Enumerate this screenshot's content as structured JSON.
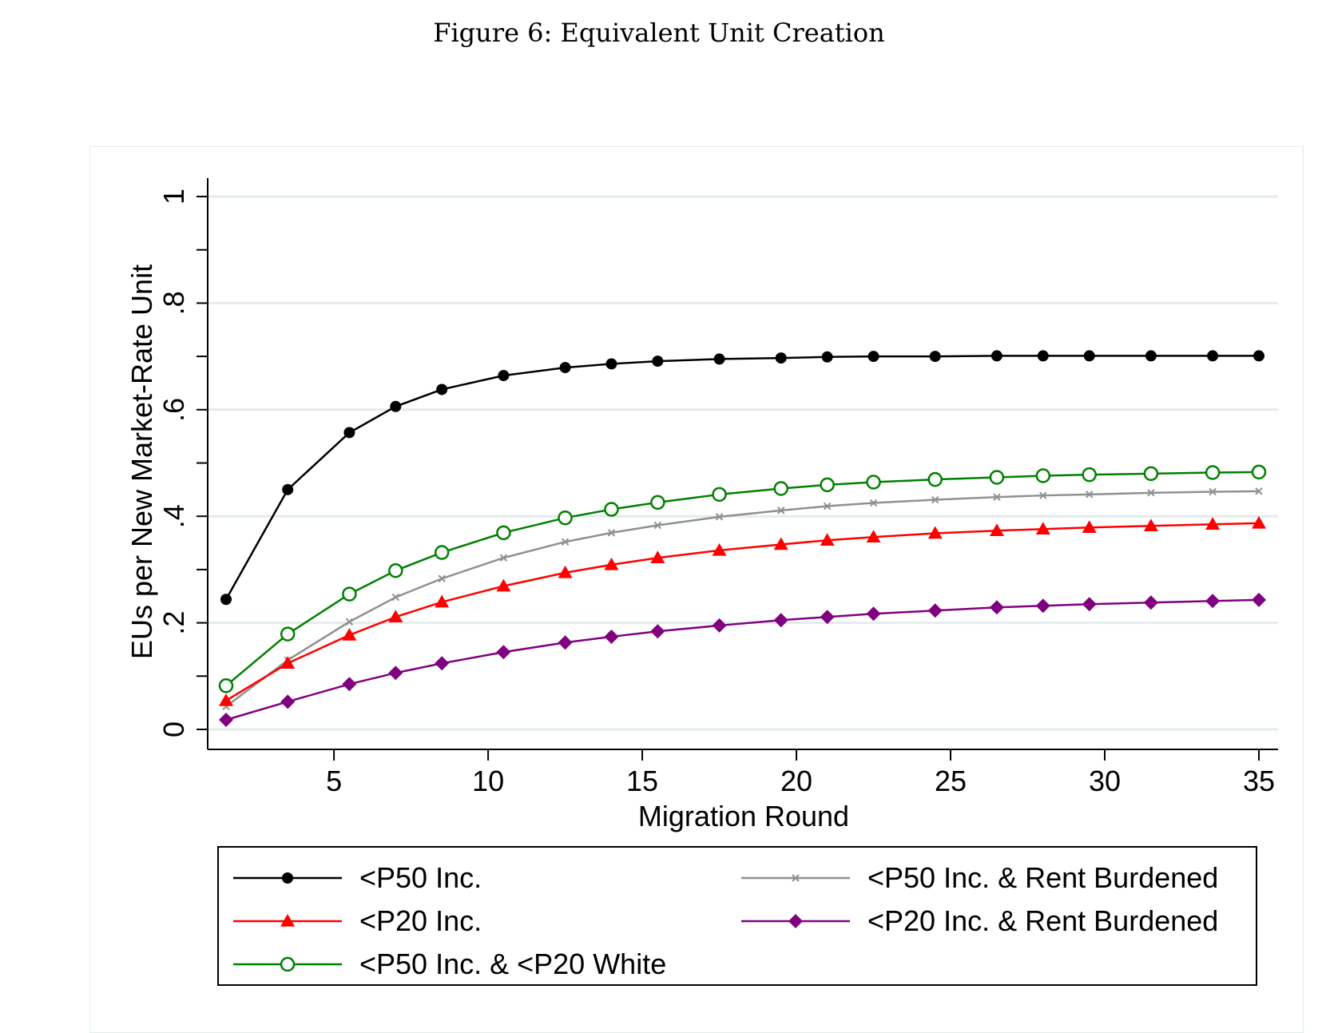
{
  "figure_title": "Figure 6:   Equivalent Unit Creation",
  "chart_data": {
    "type": "line",
    "title": "",
    "xlabel": "Migration Round",
    "ylabel": "EUs per New Market-Rate Unit",
    "xlim": [
      1,
      35
    ],
    "ylim": [
      0,
      1
    ],
    "x_ticks": [
      5,
      10,
      15,
      20,
      25,
      30,
      35
    ],
    "x_tick_labels": [
      "5",
      "10",
      "15",
      "20",
      "25",
      "30",
      "35"
    ],
    "y_ticks": [
      0,
      0.2,
      0.4,
      0.6,
      0.8,
      1
    ],
    "y_tick_labels": [
      "0",
      ".2",
      ".4",
      ".6",
      ".8",
      "1"
    ],
    "y_minor_ticks": [
      0.1,
      0.3,
      0.5,
      0.7,
      0.9
    ],
    "grid": true,
    "legend_position": "bottom",
    "x": [
      1.5,
      3.5,
      5.5,
      7,
      8.5,
      10.5,
      12.5,
      14,
      15.5,
      17.5,
      19.5,
      21,
      22.5,
      24.5,
      26.5,
      28,
      29.5,
      31.5,
      33.5,
      35
    ],
    "series": [
      {
        "name": "<P50 Inc.",
        "color": "#000000",
        "marker": "circle-filled",
        "values": [
          0.244,
          0.45,
          0.557,
          0.606,
          0.638,
          0.664,
          0.679,
          0.686,
          0.691,
          0.695,
          0.697,
          0.699,
          0.7,
          0.7,
          0.701,
          0.701,
          0.701,
          0.701,
          0.701,
          0.701
        ]
      },
      {
        "name": "<P20 Inc.",
        "color": "#ff0000",
        "marker": "triangle-filled",
        "values": [
          0.054,
          0.124,
          0.177,
          0.211,
          0.239,
          0.269,
          0.294,
          0.309,
          0.322,
          0.336,
          0.347,
          0.355,
          0.361,
          0.368,
          0.373,
          0.376,
          0.379,
          0.382,
          0.385,
          0.387
        ]
      },
      {
        "name": "<P50 Inc. & <P20 White",
        "color": "#008000",
        "marker": "circle-hollow",
        "values": [
          0.082,
          0.179,
          0.254,
          0.298,
          0.332,
          0.369,
          0.397,
          0.413,
          0.426,
          0.441,
          0.452,
          0.459,
          0.464,
          0.469,
          0.473,
          0.476,
          0.478,
          0.48,
          0.482,
          0.483
        ]
      },
      {
        "name": "<P50 Inc. & Rent Burdened",
        "color": "#909090",
        "marker": "x",
        "values": [
          0.043,
          0.13,
          0.202,
          0.248,
          0.283,
          0.322,
          0.352,
          0.369,
          0.383,
          0.399,
          0.411,
          0.419,
          0.425,
          0.431,
          0.436,
          0.439,
          0.441,
          0.444,
          0.446,
          0.447
        ]
      },
      {
        "name": "<P20 Inc. & Rent Burdened",
        "color": "#800080",
        "marker": "diamond-filled",
        "values": [
          0.018,
          0.052,
          0.085,
          0.106,
          0.124,
          0.145,
          0.163,
          0.174,
          0.184,
          0.195,
          0.205,
          0.211,
          0.217,
          0.223,
          0.229,
          0.232,
          0.235,
          0.238,
          0.241,
          0.243
        ]
      }
    ]
  }
}
